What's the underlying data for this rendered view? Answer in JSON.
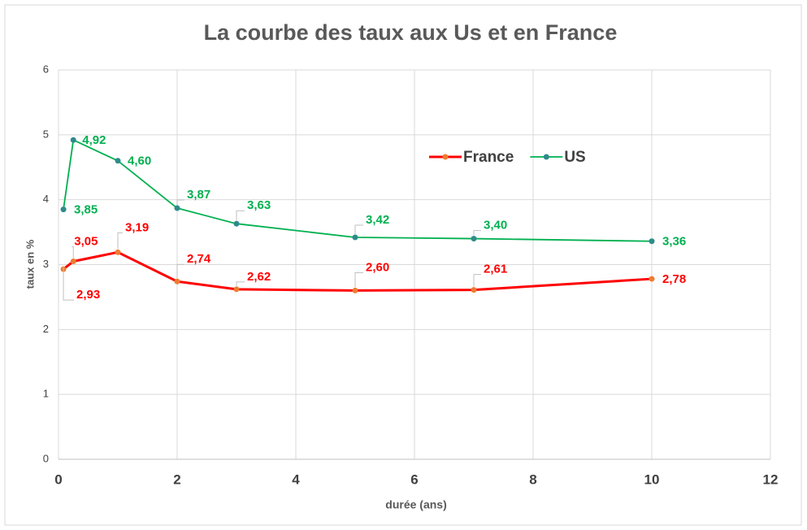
{
  "chart_data": {
    "type": "line",
    "title": "La courbe des taux  aux Us et en France",
    "x_label": "durée (ans)",
    "y_label": "taux en %",
    "x": [
      0.083,
      0.25,
      1,
      2,
      3,
      5,
      7,
      10
    ],
    "series": [
      {
        "name": "France",
        "color": "#ff0000",
        "marker_color": "#ed7d31",
        "values": [
          2.93,
          3.05,
          3.19,
          2.74,
          2.62,
          2.6,
          2.61,
          2.78
        ],
        "value_labels": [
          "2,93",
          "3,05",
          "3,19",
          "2,74",
          "2,62",
          "2,60",
          "2,61",
          "2,78"
        ]
      },
      {
        "name": "US",
        "color": "#00b050",
        "marker_color": "#2e8b8b",
        "values": [
          3.85,
          4.92,
          4.6,
          3.87,
          3.63,
          3.42,
          3.4,
          3.36
        ],
        "value_labels": [
          "3,85",
          "4,92",
          "4,60",
          "3,87",
          "3,63",
          "3,42",
          "3,40",
          "3,36"
        ]
      }
    ],
    "xlim": [
      0,
      12
    ],
    "xticks": [
      0,
      2,
      4,
      6,
      8,
      10,
      12
    ],
    "ylim": [
      0,
      6
    ],
    "yticks": [
      0,
      1,
      2,
      3,
      4,
      5,
      6
    ],
    "grid": true,
    "legend": "right"
  }
}
